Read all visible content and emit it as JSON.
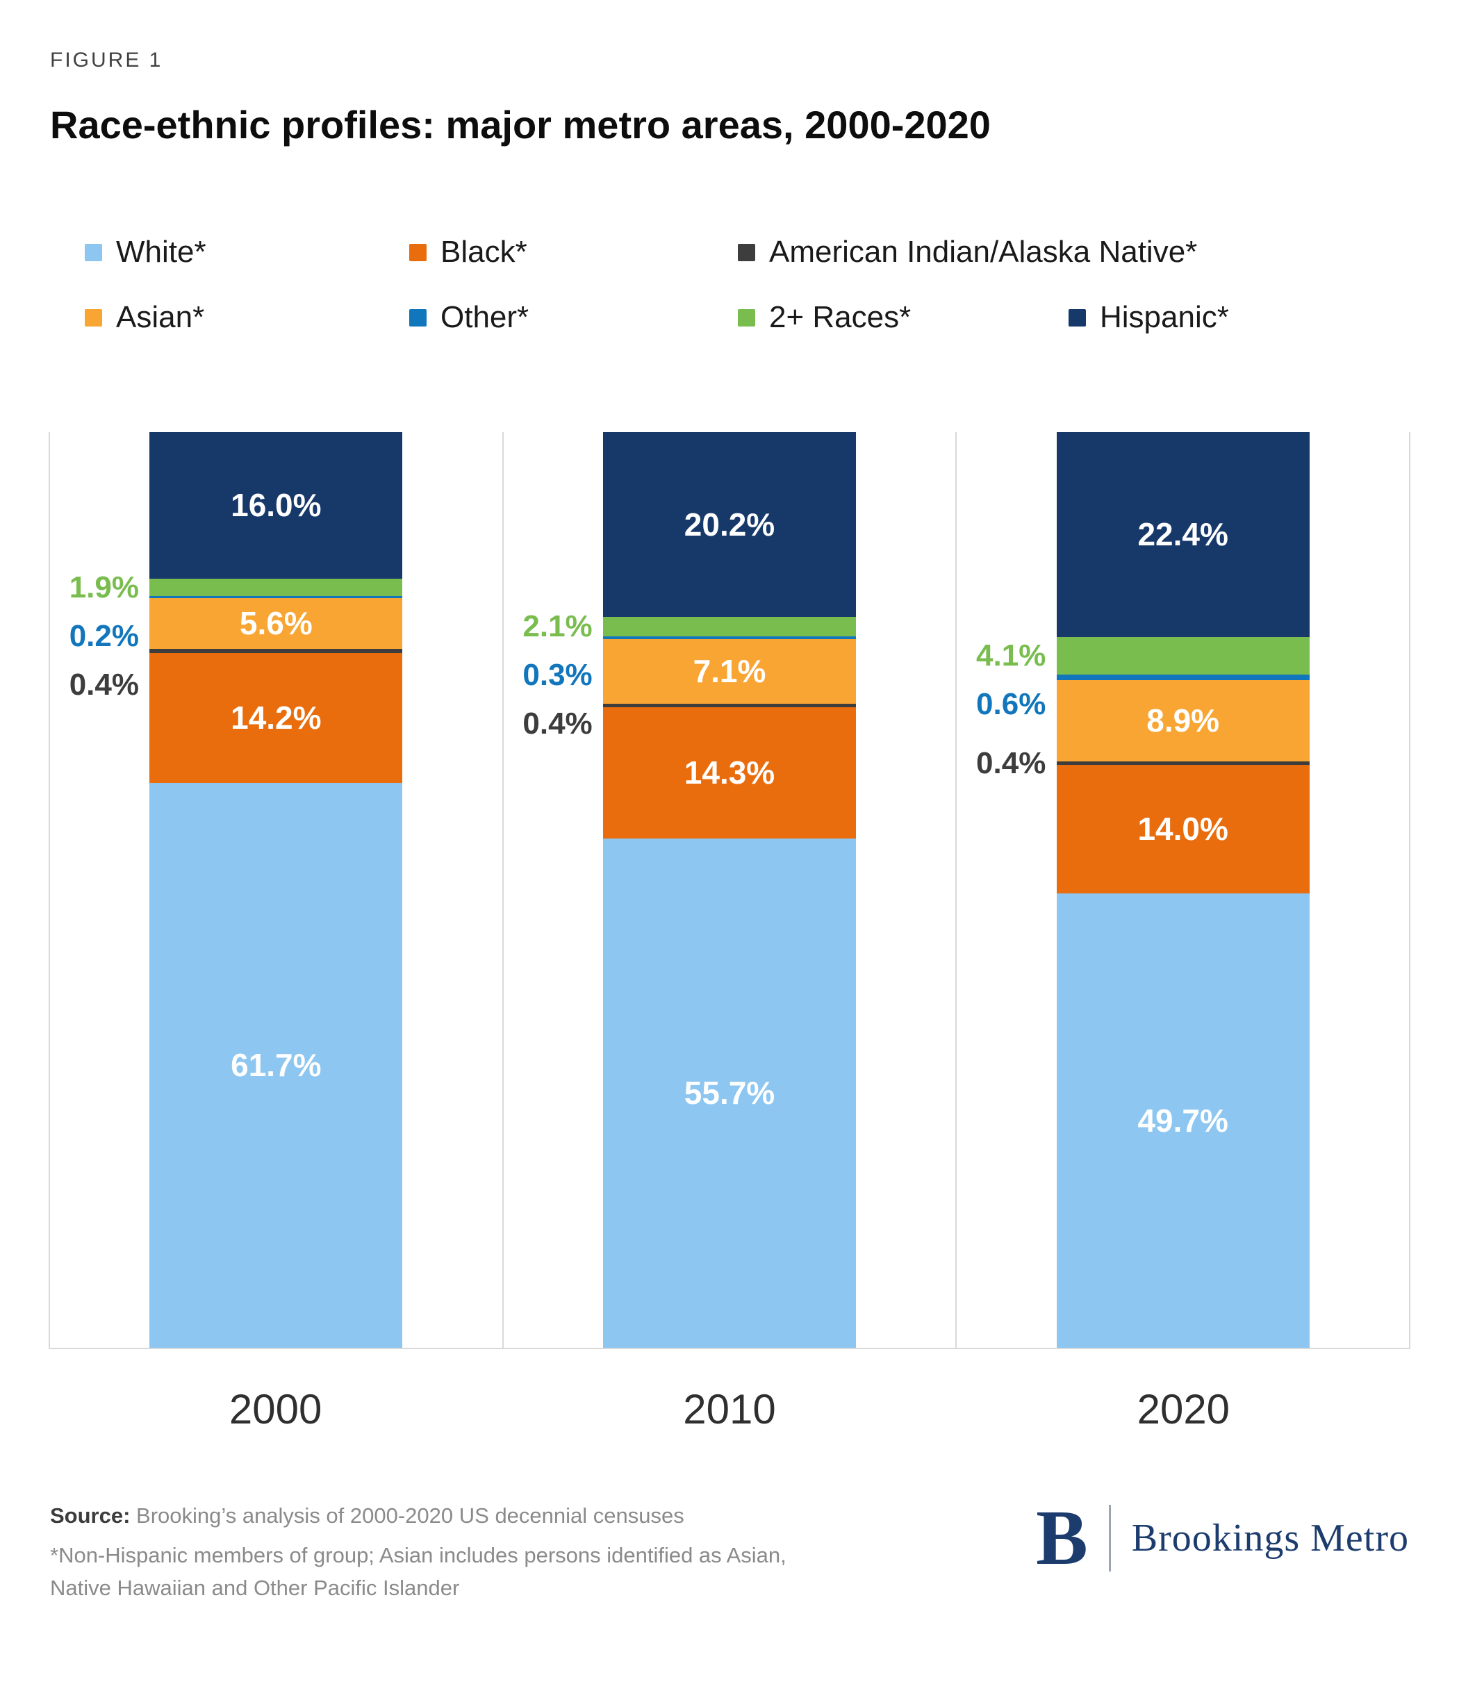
{
  "figure_label": "FIGURE 1",
  "title": "Race-ethnic profiles: major metro areas, 2000-2020",
  "legend": {
    "rows": [
      [
        {
          "label": "White*",
          "color": "#8dc6f1"
        },
        {
          "label": "Black*",
          "color": "#e96d0d"
        },
        {
          "label": "American Indian/Alaska Native*",
          "color": "#3d3d3d"
        }
      ],
      [
        {
          "label": "Asian*",
          "color": "#f9a533"
        },
        {
          "label": "Other*",
          "color": "#1176bc"
        },
        {
          "label": "2+ Races*",
          "color": "#7abd4f"
        },
        {
          "label": "Hispanic*",
          "color": "#16396a"
        }
      ]
    ]
  },
  "chart_data": {
    "type": "bar",
    "stacked": true,
    "stack_order": "bottom-to-top",
    "title": "Race-ethnic profiles: major metro areas, 2000-2020",
    "categories": [
      "2000",
      "2010",
      "2020"
    ],
    "series": [
      {
        "name": "White*",
        "color": "#8dc6f1",
        "values": [
          61.7,
          55.7,
          49.7
        ],
        "label_position": "inside"
      },
      {
        "name": "Black*",
        "color": "#e96d0d",
        "values": [
          14.2,
          14.3,
          14.0
        ],
        "label_position": "inside"
      },
      {
        "name": "American Indian/Alaska Native*",
        "color": "#3d3d3d",
        "values": [
          0.4,
          0.4,
          0.4
        ],
        "label_position": "outside"
      },
      {
        "name": "Asian*",
        "color": "#f9a533",
        "values": [
          5.6,
          7.1,
          8.9
        ],
        "label_position": "inside"
      },
      {
        "name": "Other*",
        "color": "#1176bc",
        "values": [
          0.2,
          0.3,
          0.6
        ],
        "label_position": "outside"
      },
      {
        "name": "2+ Races*",
        "color": "#7abd4f",
        "values": [
          1.9,
          2.1,
          4.1
        ],
        "label_position": "outside"
      },
      {
        "name": "Hispanic*",
        "color": "#16396a",
        "values": [
          16.0,
          20.2,
          22.4
        ],
        "label_position": "inside"
      }
    ],
    "xlabel": "",
    "ylabel": "",
    "ylim": [
      0,
      100
    ],
    "value_suffix": "%",
    "grid": "vertical-separators",
    "legend_position": "top"
  },
  "footer": {
    "source_prefix": "Source:",
    "source_text": " Brooking’s analysis of 2000-2020 US decennial censuses",
    "note_text": "*Non-Hispanic members of group; Asian includes persons identified as Asian, Native Hawaiian and Other Pacific Islander"
  },
  "logo": {
    "mark": "B",
    "text": "Brookings Metro"
  }
}
